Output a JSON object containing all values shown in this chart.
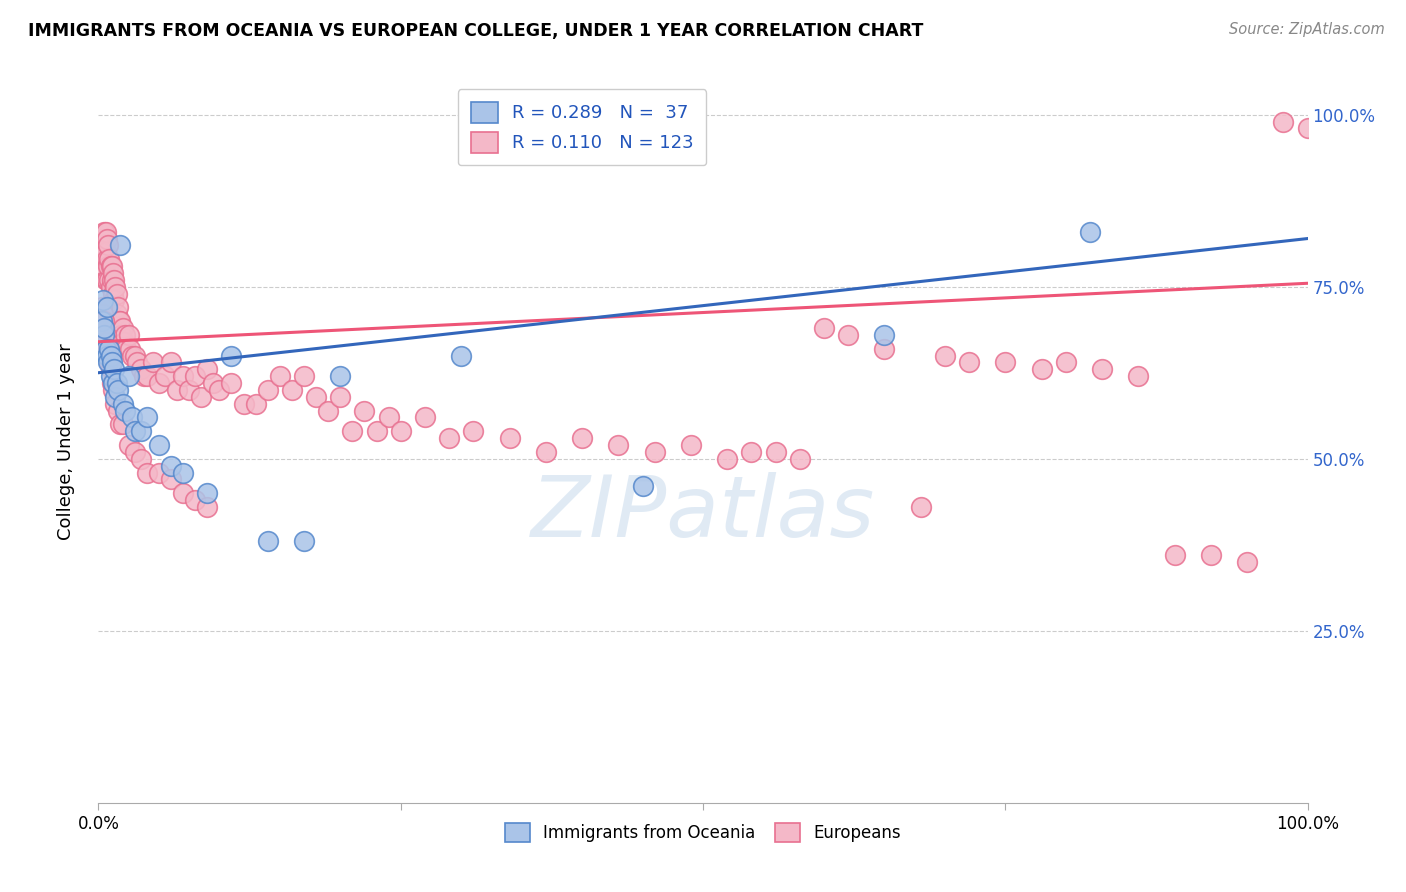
{
  "title": "IMMIGRANTS FROM OCEANIA VS EUROPEAN COLLEGE, UNDER 1 YEAR CORRELATION CHART",
  "source": "Source: ZipAtlas.com",
  "ylabel": "College, Under 1 year",
  "legend_blue_label": "Immigrants from Oceania",
  "legend_pink_label": "Europeans",
  "R_blue": 0.289,
  "N_blue": 37,
  "R_pink": 0.11,
  "N_pink": 123,
  "blue_scatter_color": "#aac4e8",
  "blue_edge_color": "#5588cc",
  "pink_scatter_color": "#f4b8c8",
  "pink_edge_color": "#e87090",
  "blue_line_color": "#3366bb",
  "pink_line_color": "#ee5577",
  "watermark": "ZIPatlas",
  "blue_line_x0": 0.0,
  "blue_line_y0": 0.625,
  "blue_line_x1": 1.0,
  "blue_line_y1": 0.82,
  "pink_line_x0": 0.0,
  "pink_line_y0": 0.67,
  "pink_line_x1": 1.0,
  "pink_line_y1": 0.755,
  "xlim": [
    0.0,
    1.0
  ],
  "ylim": [
    0.0,
    1.05
  ],
  "figsize": [
    14.06,
    8.92
  ],
  "dpi": 100,
  "blue_x": [
    0.003,
    0.004,
    0.005,
    0.005,
    0.006,
    0.007,
    0.007,
    0.008,
    0.009,
    0.01,
    0.01,
    0.011,
    0.012,
    0.013,
    0.014,
    0.015,
    0.016,
    0.018,
    0.02,
    0.022,
    0.025,
    0.028,
    0.03,
    0.035,
    0.04,
    0.05,
    0.06,
    0.07,
    0.09,
    0.11,
    0.14,
    0.17,
    0.2,
    0.3,
    0.45,
    0.65,
    0.82
  ],
  "blue_y": [
    0.7,
    0.73,
    0.68,
    0.69,
    0.66,
    0.65,
    0.72,
    0.64,
    0.66,
    0.65,
    0.62,
    0.64,
    0.61,
    0.63,
    0.59,
    0.61,
    0.6,
    0.81,
    0.58,
    0.57,
    0.62,
    0.56,
    0.54,
    0.54,
    0.56,
    0.52,
    0.49,
    0.48,
    0.45,
    0.65,
    0.38,
    0.38,
    0.62,
    0.65,
    0.46,
    0.68,
    0.83
  ],
  "pink_x": [
    0.002,
    0.003,
    0.004,
    0.004,
    0.005,
    0.005,
    0.005,
    0.006,
    0.006,
    0.006,
    0.007,
    0.007,
    0.007,
    0.008,
    0.008,
    0.009,
    0.009,
    0.01,
    0.01,
    0.011,
    0.011,
    0.012,
    0.012,
    0.013,
    0.013,
    0.014,
    0.015,
    0.015,
    0.016,
    0.017,
    0.018,
    0.019,
    0.02,
    0.021,
    0.022,
    0.023,
    0.025,
    0.026,
    0.028,
    0.03,
    0.032,
    0.035,
    0.038,
    0.04,
    0.045,
    0.05,
    0.055,
    0.06,
    0.065,
    0.07,
    0.075,
    0.08,
    0.085,
    0.09,
    0.095,
    0.1,
    0.11,
    0.12,
    0.13,
    0.14,
    0.15,
    0.16,
    0.17,
    0.18,
    0.19,
    0.2,
    0.21,
    0.22,
    0.23,
    0.24,
    0.25,
    0.27,
    0.29,
    0.31,
    0.34,
    0.37,
    0.4,
    0.43,
    0.46,
    0.49,
    0.52,
    0.54,
    0.56,
    0.58,
    0.6,
    0.62,
    0.65,
    0.68,
    0.7,
    0.72,
    0.75,
    0.78,
    0.8,
    0.83,
    0.86,
    0.89,
    0.92,
    0.95,
    0.98,
    1.0,
    0.003,
    0.004,
    0.005,
    0.006,
    0.007,
    0.008,
    0.009,
    0.01,
    0.011,
    0.012,
    0.014,
    0.016,
    0.018,
    0.02,
    0.025,
    0.03,
    0.035,
    0.04,
    0.05,
    0.06,
    0.07,
    0.08,
    0.09
  ],
  "pink_y": [
    0.8,
    0.81,
    0.82,
    0.79,
    0.83,
    0.81,
    0.78,
    0.83,
    0.8,
    0.76,
    0.82,
    0.79,
    0.76,
    0.81,
    0.78,
    0.79,
    0.76,
    0.78,
    0.75,
    0.78,
    0.76,
    0.77,
    0.74,
    0.76,
    0.73,
    0.75,
    0.74,
    0.71,
    0.72,
    0.7,
    0.7,
    0.68,
    0.69,
    0.67,
    0.68,
    0.66,
    0.68,
    0.66,
    0.65,
    0.65,
    0.64,
    0.63,
    0.62,
    0.62,
    0.64,
    0.61,
    0.62,
    0.64,
    0.6,
    0.62,
    0.6,
    0.62,
    0.59,
    0.63,
    0.61,
    0.6,
    0.61,
    0.58,
    0.58,
    0.6,
    0.62,
    0.6,
    0.62,
    0.59,
    0.57,
    0.59,
    0.54,
    0.57,
    0.54,
    0.56,
    0.54,
    0.56,
    0.53,
    0.54,
    0.53,
    0.51,
    0.53,
    0.52,
    0.51,
    0.52,
    0.5,
    0.51,
    0.51,
    0.5,
    0.69,
    0.68,
    0.66,
    0.43,
    0.65,
    0.64,
    0.64,
    0.63,
    0.64,
    0.63,
    0.62,
    0.36,
    0.36,
    0.35,
    0.99,
    0.98,
    0.72,
    0.71,
    0.7,
    0.68,
    0.67,
    0.66,
    0.64,
    0.63,
    0.61,
    0.6,
    0.58,
    0.57,
    0.55,
    0.55,
    0.52,
    0.51,
    0.5,
    0.48,
    0.48,
    0.47,
    0.45,
    0.44,
    0.43
  ]
}
